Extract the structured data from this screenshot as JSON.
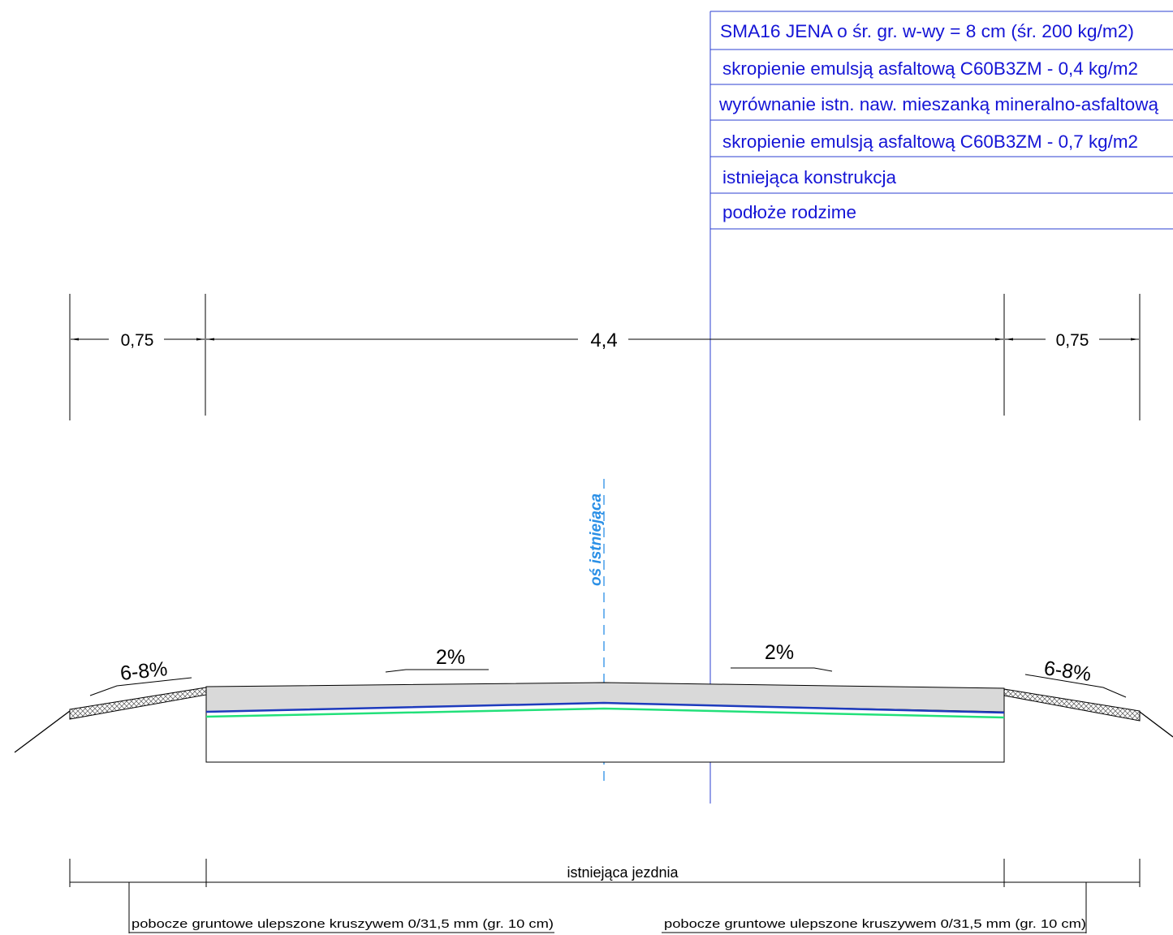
{
  "layers_legend": [
    "SMA16 JENA o śr. gr. w-wy = 8 cm (śr. 200 kg/m2)",
    "skropienie emulsją asfaltową C60B3ZM - 0,4 kg/m2",
    "wyrównanie istn. naw. mieszanką mineralno-asfaltową",
    "skropienie emulsją asfaltową C60B3ZM - 0,7 kg/m2",
    "istniejąca konstrukcja",
    "podłoże rodzime"
  ],
  "dimensions": {
    "left_shoulder": "0,75",
    "carriageway": "4,4",
    "right_shoulder": "0,75"
  },
  "slopes": {
    "left_shoulder": "6-8%",
    "left_lane": "2%",
    "right_lane": "2%",
    "right_shoulder": "6-8%"
  },
  "axis_label": "oś istniejąca",
  "bottom_labels": {
    "existing_road": "istniejąca jezdnia",
    "left_shoulder_desc": "pobocze gruntowe ulepszone kruszywem 0/31,5 mm (gr. 10 cm)",
    "right_shoulder_desc": "pobocze gruntowe ulepszone kruszywem 0/31,5 mm (gr. 10 cm)"
  },
  "colors": {
    "legend_text": "#1515d6",
    "frame_line": "#2b3fd0",
    "wearing_course": "#d9d9d9",
    "tack_coat_top": "#1e3bbd",
    "tack_coat_bottom": "#22e07a",
    "axis": "#2a8fe6"
  }
}
